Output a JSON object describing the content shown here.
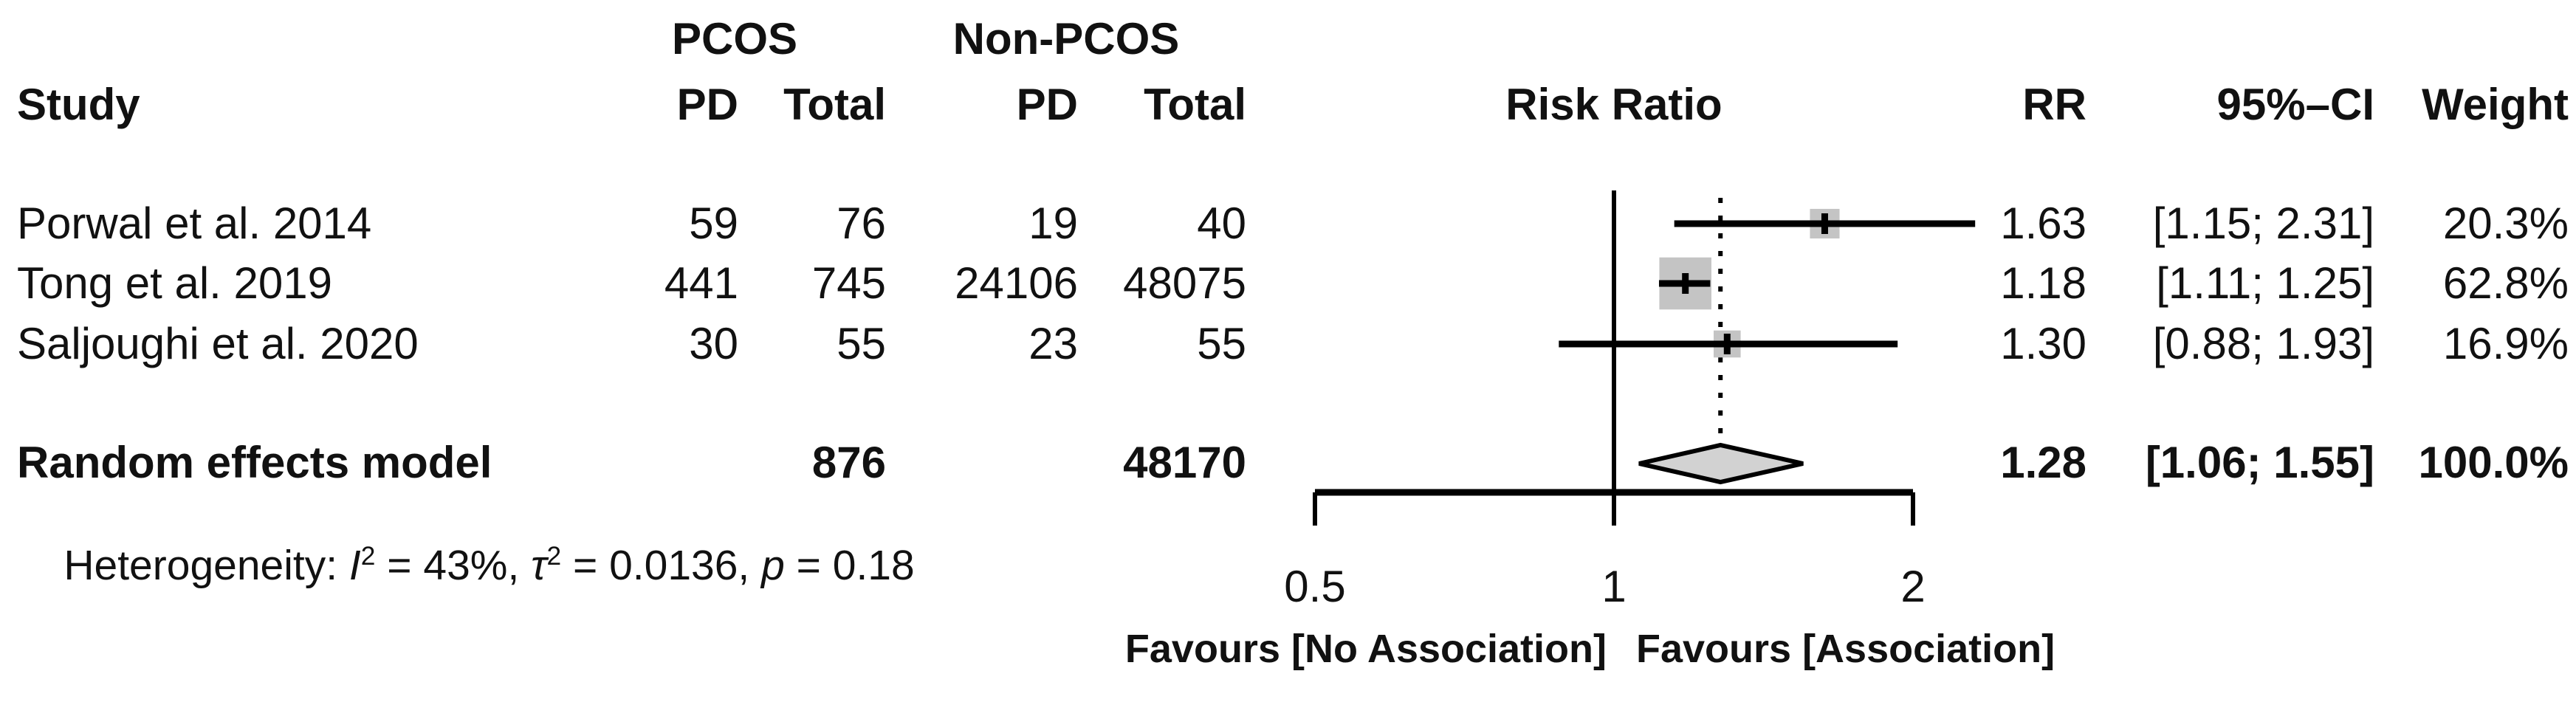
{
  "header": {
    "study": "Study",
    "group1": {
      "name": "PCOS",
      "pd": "PD",
      "total": "Total"
    },
    "group2": {
      "name": "Non-PCOS",
      "pd": "PD",
      "total": "Total"
    },
    "risk_ratio": "Risk Ratio",
    "rr": "RR",
    "ci": "95%–CI",
    "weight": "Weight"
  },
  "chart_data": {
    "type": "forest",
    "x_scale": "log",
    "effect_measure": "Risk Ratio",
    "axis": {
      "range": [
        0.5,
        2
      ],
      "ticks": [
        0.5,
        1,
        2
      ],
      "tick_labels": [
        "0.5",
        "1",
        "2"
      ],
      "ref_line": 1
    },
    "studies": [
      {
        "name": "Porwal et al. 2014",
        "pcos_pd": "59",
        "pcos_total": "76",
        "nonpcos_pd": "19",
        "nonpcos_total": "40",
        "rr": 1.63,
        "ci_low": 1.15,
        "ci_high": 2.31,
        "rr_text": "1.63",
        "ci_text": "[1.15; 2.31]",
        "weight_pct": 20.3,
        "weight_text": "20.3%"
      },
      {
        "name": "Tong et al. 2019",
        "pcos_pd": "441",
        "pcos_total": "745",
        "nonpcos_pd": "24106",
        "nonpcos_total": "48075",
        "rr": 1.18,
        "ci_low": 1.11,
        "ci_high": 1.25,
        "rr_text": "1.18",
        "ci_text": "[1.11; 1.25]",
        "weight_pct": 62.8,
        "weight_text": "62.8%"
      },
      {
        "name": "Saljoughi et al. 2020",
        "pcos_pd": "30",
        "pcos_total": "55",
        "nonpcos_pd": "23",
        "nonpcos_total": "55",
        "rr": 1.3,
        "ci_low": 0.88,
        "ci_high": 1.93,
        "rr_text": "1.30",
        "ci_text": "[0.88; 1.93]",
        "weight_pct": 16.9,
        "weight_text": "16.9%"
      }
    ],
    "pooled": {
      "label": "Random effects model",
      "pcos_total": "876",
      "nonpcos_total": "48170",
      "rr": 1.28,
      "ci_low": 1.06,
      "ci_high": 1.55,
      "rr_text": "1.28",
      "ci_text": "[1.06; 1.55]",
      "weight_text": "100.0%"
    },
    "heterogeneity": {
      "prefix": "Heterogeneity: ",
      "i_symbol": "I",
      "i_sup": "2",
      "i_value": " = 43%, ",
      "tau_symbol": "τ",
      "tau_sup": "2",
      "tau_value": " = 0.0136, ",
      "p_symbol": "p",
      "p_value": " = 0.18"
    },
    "favours_left": "Favours [No Association]",
    "favours_right": "Favours [Association]",
    "colors": {
      "square": "#c4c4c4",
      "diamond": "#d2d2d2",
      "line": "#000000"
    }
  }
}
